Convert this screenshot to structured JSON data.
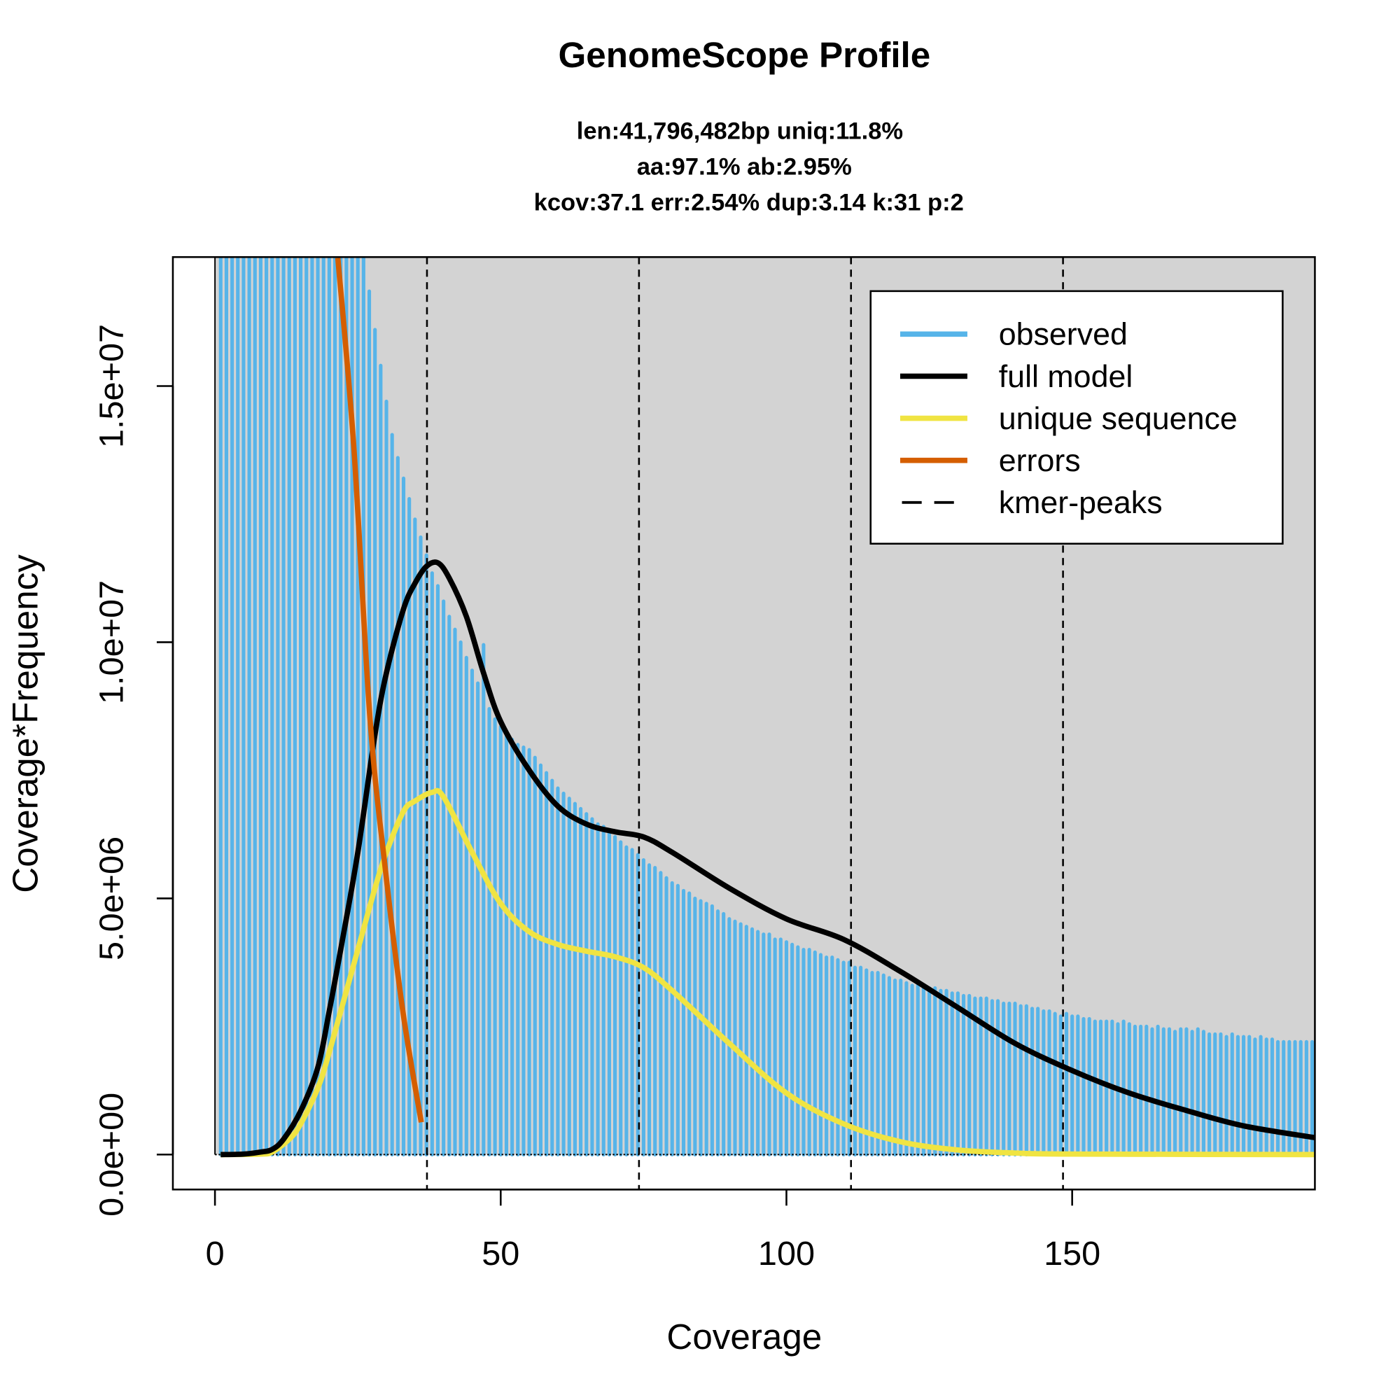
{
  "chart_data": {
    "type": "bar",
    "title": "GenomeScope Profile",
    "subtitle_lines": [
      "len:41,796,482bp uniq:11.8%",
      "aa:97.1% ab:2.95%",
      "kcov:37.1 err:2.54%  dup:3.14  k:31 p:2"
    ],
    "xlabel": "Coverage",
    "ylabel": "Coverage*Frequency",
    "xlim": [
      -7.4,
      192.5
    ],
    "ylim": [
      -680000,
      17500000
    ],
    "y_unit_note": "values in millions",
    "x_ticks": [
      0,
      50,
      100,
      150
    ],
    "x_tick_labels": [
      "0",
      "50",
      "100",
      "150"
    ],
    "y_ticks": [
      0,
      5,
      10,
      15
    ],
    "y_tick_labels": [
      "0.0e+00",
      "5.0e+06",
      "1.0e+07",
      "1.5e+07"
    ],
    "colors": {
      "observed": "#56B4E9",
      "full_model": "#000000",
      "unique": "#F0E442",
      "errors": "#D55E00",
      "background": "#D3D3D3"
    },
    "legend": {
      "position": "top-right",
      "entries": [
        {
          "label": "observed",
          "color": "#56B4E9",
          "style": "solid"
        },
        {
          "label": "full model",
          "color": "#000000",
          "style": "solid"
        },
        {
          "label": "unique sequence",
          "color": "#F0E442",
          "style": "solid"
        },
        {
          "label": "errors",
          "color": "#D55E00",
          "style": "solid"
        },
        {
          "label": "kmer-peaks",
          "color": "#000000",
          "style": "dashed"
        }
      ]
    },
    "kmer_peaks": [
      37.1,
      74.2,
      111.3,
      148.4
    ],
    "observed": {
      "x_start": 1,
      "values": [
        18,
        18,
        18,
        18,
        18,
        18,
        18,
        18,
        18,
        18,
        18,
        18,
        18,
        18,
        18,
        18,
        18,
        18,
        18,
        18,
        18,
        18,
        18,
        18,
        18,
        18,
        16.85,
        16.1,
        15.4,
        14.7,
        14.05,
        13.6,
        13.2,
        12.8,
        12.4,
        12.05,
        11.7,
        11.35,
        11.1,
        10.8,
        10.5,
        10.25,
        10.0,
        9.7,
        9.45,
        9.2,
        9.95,
        8.7,
        8.5,
        8.35,
        8.2,
        8.1,
        8.0,
        7.95,
        7.9,
        7.75,
        7.6,
        7.45,
        7.3,
        7.15,
        7.05,
        6.95,
        6.85,
        6.75,
        6.65,
        6.55,
        6.45,
        6.4,
        6.3,
        6.2,
        6.1,
        6.0,
        5.95,
        5.85,
        5.75,
        5.65,
        5.6,
        5.5,
        5.4,
        5.3,
        5.25,
        5.15,
        5.1,
        5.0,
        4.95,
        4.9,
        4.85,
        4.75,
        4.7,
        4.6,
        4.55,
        4.5,
        4.45,
        4.4,
        4.35,
        4.3,
        4.3,
        4.2,
        4.2,
        4.15,
        4.1,
        4.05,
        4.0,
        4.0,
        3.95,
        3.9,
        3.85,
        3.85,
        3.8,
        3.75,
        3.75,
        3.65,
        3.65,
        3.6,
        3.55,
        3.55,
        3.5,
        3.45,
        3.4,
        3.4,
        3.35,
        3.3,
        3.3,
        3.3,
        3.25,
        3.25,
        3.2,
        3.2,
        3.15,
        3.15,
        3.1,
        3.1,
        3.05,
        3.05,
        3.05,
        3.0,
        3.0,
        2.95,
        2.95,
        2.95,
        2.9,
        2.9,
        2.85,
        2.85,
        2.8,
        2.8,
        2.75,
        2.7,
        2.75,
        2.7,
        2.7,
        2.65,
        2.65,
        2.6,
        2.6,
        2.6,
        2.6,
        2.55,
        2.6,
        2.55,
        2.5,
        2.5,
        2.5,
        2.45,
        2.5,
        2.45,
        2.45,
        2.4,
        2.45,
        2.45,
        2.4,
        2.45,
        2.4,
        2.35,
        2.35,
        2.35,
        2.3,
        2.35,
        2.3,
        2.3,
        2.3,
        2.25,
        2.3,
        2.25,
        2.25,
        2.2,
        2.2,
        2.2,
        2.2,
        2.2,
        2.2,
        2.2
      ]
    },
    "full_model": [
      [
        1,
        0
      ],
      [
        5,
        0.01
      ],
      [
        8,
        0.05
      ],
      [
        10,
        0.1
      ],
      [
        12,
        0.3
      ],
      [
        15,
        0.85
      ],
      [
        18,
        1.7
      ],
      [
        20,
        2.8
      ],
      [
        22,
        4.0
      ],
      [
        25,
        5.9
      ],
      [
        28,
        8.2
      ],
      [
        30,
        9.4
      ],
      [
        33,
        10.65
      ],
      [
        35,
        11.15
      ],
      [
        37,
        11.48
      ],
      [
        39,
        11.55
      ],
      [
        41,
        11.25
      ],
      [
        44,
        10.5
      ],
      [
        47,
        9.4
      ],
      [
        50,
        8.45
      ],
      [
        55,
        7.5
      ],
      [
        60,
        6.8
      ],
      [
        65,
        6.45
      ],
      [
        70,
        6.3
      ],
      [
        75,
        6.2
      ],
      [
        80,
        5.9
      ],
      [
        90,
        5.2
      ],
      [
        100,
        4.6
      ],
      [
        110,
        4.2
      ],
      [
        120,
        3.57
      ],
      [
        130,
        2.87
      ],
      [
        140,
        2.17
      ],
      [
        150,
        1.64
      ],
      [
        160,
        1.2
      ],
      [
        170,
        0.86
      ],
      [
        180,
        0.56
      ],
      [
        192.5,
        0.33
      ]
    ],
    "unique_sequence": [
      [
        1,
        0
      ],
      [
        8,
        0.01
      ],
      [
        10,
        0.05
      ],
      [
        13,
        0.3
      ],
      [
        15,
        0.6
      ],
      [
        18,
        1.3
      ],
      [
        20,
        2.0
      ],
      [
        25,
        4.0
      ],
      [
        28,
        5.2
      ],
      [
        30,
        5.9
      ],
      [
        33,
        6.7
      ],
      [
        35,
        6.9
      ],
      [
        38,
        7.07
      ],
      [
        40,
        6.98
      ],
      [
        45,
        5.9
      ],
      [
        50,
        4.9
      ],
      [
        55,
        4.35
      ],
      [
        60,
        4.1
      ],
      [
        65,
        3.97
      ],
      [
        70,
        3.86
      ],
      [
        75,
        3.65
      ],
      [
        80,
        3.2
      ],
      [
        90,
        2.17
      ],
      [
        100,
        1.2
      ],
      [
        110,
        0.6
      ],
      [
        120,
        0.25
      ],
      [
        130,
        0.09
      ],
      [
        140,
        0.03
      ],
      [
        150,
        0.01
      ],
      [
        192.5,
        0
      ]
    ],
    "errors": [
      [
        21.5,
        17.5
      ],
      [
        24.3,
        13.8
      ],
      [
        27.1,
        8.55
      ],
      [
        29.8,
        5.58
      ],
      [
        32.9,
        2.78
      ],
      [
        36.1,
        0.63
      ]
    ]
  }
}
